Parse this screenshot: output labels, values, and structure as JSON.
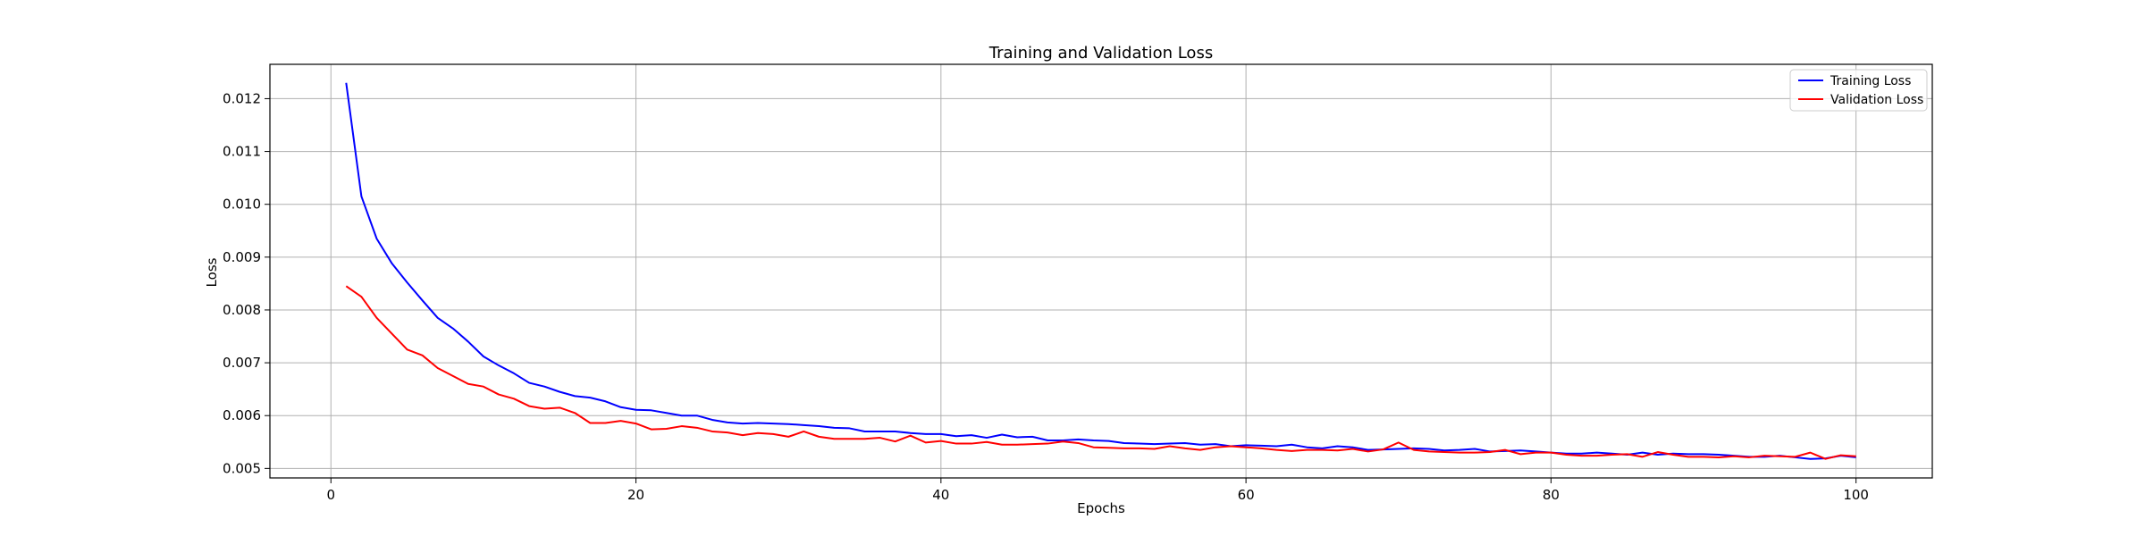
{
  "chart_data": {
    "type": "line",
    "title": "Training and Validation Loss",
    "xlabel": "Epochs",
    "ylabel": "Loss",
    "xlim": [
      -4,
      105
    ],
    "ylim": [
      0.00482,
      0.01265
    ],
    "xticks": [
      0,
      20,
      40,
      60,
      80,
      100
    ],
    "yticks": [
      0.005,
      0.006,
      0.007,
      0.008,
      0.009,
      0.01,
      0.011,
      0.012
    ],
    "ytick_labels": [
      "0.005",
      "0.006",
      "0.007",
      "0.008",
      "0.009",
      "0.010",
      "0.011",
      "0.012"
    ],
    "grid": true,
    "legend_position": "upper-right",
    "x_start": 1,
    "series": [
      {
        "name": "Training Loss",
        "color": "#0000ff",
        "values": [
          0.0123,
          0.01015,
          0.00935,
          0.00888,
          0.00852,
          0.00818,
          0.00785,
          0.00765,
          0.0074,
          0.00712,
          0.00695,
          0.0068,
          0.00662,
          0.00655,
          0.00645,
          0.00637,
          0.00634,
          0.00627,
          0.00616,
          0.00611,
          0.0061,
          0.00605,
          0.006,
          0.006,
          0.00592,
          0.00587,
          0.00585,
          0.00586,
          0.00585,
          0.00584,
          0.00582,
          0.0058,
          0.00577,
          0.00576,
          0.0057,
          0.0057,
          0.0057,
          0.00567,
          0.00565,
          0.00565,
          0.00561,
          0.00563,
          0.00558,
          0.00564,
          0.00559,
          0.0056,
          0.00553,
          0.00553,
          0.00555,
          0.00553,
          0.00552,
          0.00548,
          0.00547,
          0.00546,
          0.00547,
          0.00548,
          0.00545,
          0.00546,
          0.00542,
          0.00544,
          0.00543,
          0.00542,
          0.00545,
          0.0054,
          0.00538,
          0.00542,
          0.0054,
          0.00535,
          0.00536,
          0.00537,
          0.00538,
          0.00537,
          0.00534,
          0.00535,
          0.00537,
          0.00532,
          0.00533,
          0.00534,
          0.00532,
          0.0053,
          0.00528,
          0.00528,
          0.0053,
          0.00528,
          0.00526,
          0.0053,
          0.00526,
          0.00528,
          0.00527,
          0.00527,
          0.00526,
          0.00524,
          0.00522,
          0.00522,
          0.00524,
          0.00521,
          0.00518,
          0.00519,
          0.00524,
          0.00521
        ]
      },
      {
        "name": "Validation Loss",
        "color": "#ff0000",
        "values": [
          0.00845,
          0.00825,
          0.00785,
          0.00755,
          0.00725,
          0.00714,
          0.0069,
          0.00675,
          0.0066,
          0.00655,
          0.0064,
          0.00632,
          0.00618,
          0.00613,
          0.00615,
          0.00605,
          0.00586,
          0.00586,
          0.0059,
          0.00585,
          0.00574,
          0.00575,
          0.0058,
          0.00577,
          0.0057,
          0.00568,
          0.00563,
          0.00567,
          0.00565,
          0.0056,
          0.0057,
          0.0056,
          0.00556,
          0.00556,
          0.00556,
          0.00558,
          0.00551,
          0.00562,
          0.00549,
          0.00552,
          0.00547,
          0.00547,
          0.0055,
          0.00545,
          0.00545,
          0.00546,
          0.00547,
          0.00551,
          0.00548,
          0.0054,
          0.00539,
          0.00538,
          0.00538,
          0.00537,
          0.00542,
          0.00538,
          0.00535,
          0.0054,
          0.00542,
          0.0054,
          0.00538,
          0.00535,
          0.00533,
          0.00535,
          0.00535,
          0.00534,
          0.00537,
          0.00532,
          0.00536,
          0.00549,
          0.00535,
          0.00532,
          0.00531,
          0.0053,
          0.0053,
          0.00531,
          0.00535,
          0.00527,
          0.0053,
          0.0053,
          0.00526,
          0.00524,
          0.00524,
          0.00526,
          0.00527,
          0.00522,
          0.00531,
          0.00526,
          0.00522,
          0.00522,
          0.00521,
          0.00523,
          0.00521,
          0.00524,
          0.00523,
          0.00522,
          0.0053,
          0.00518,
          0.00525,
          0.00523
        ]
      }
    ]
  }
}
